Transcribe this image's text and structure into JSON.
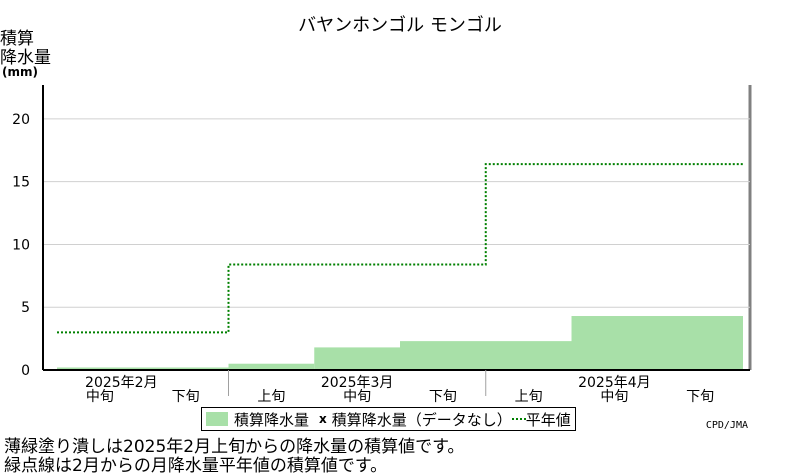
{
  "chart_data": {
    "type": "area",
    "title": "バヤンホンゴル モンゴル",
    "ylabel_lines": [
      "積算",
      "降水量"
    ],
    "yunit": "(mm)",
    "ylim": [
      0,
      22.7
    ],
    "yticks": [
      0,
      5,
      10,
      15,
      20
    ],
    "grid": true,
    "x_dekads": [
      {
        "label": "中旬",
        "month": ""
      },
      {
        "label": "下旬",
        "month": ""
      },
      {
        "label": "上旬",
        "month": ""
      },
      {
        "label": "中旬",
        "month": ""
      },
      {
        "label": "下旬",
        "month": ""
      },
      {
        "label": "上旬",
        "month": ""
      },
      {
        "label": "中旬",
        "month": ""
      },
      {
        "label": "下旬",
        "month": ""
      }
    ],
    "month_labels": [
      {
        "label": "2025年2月",
        "dekad_index": 0
      },
      {
        "label": "2025年3月",
        "dekad_index": 3
      },
      {
        "label": "2025年4月",
        "dekad_index": 6
      }
    ],
    "series": [
      {
        "name": "積算降水量",
        "style": "filled-step",
        "color": "#a8e0a8",
        "steps": [
          {
            "from": 0,
            "to": 2,
            "value": 0.2
          },
          {
            "from": 2,
            "to": 3,
            "value": 0.5
          },
          {
            "from": 3,
            "to": 4,
            "value": 1.8
          },
          {
            "from": 4,
            "to": 6,
            "value": 2.3
          },
          {
            "from": 6,
            "to": 8,
            "value": 4.3
          }
        ]
      },
      {
        "name": "平年値",
        "style": "dotted-step",
        "color": "#008000",
        "steps": [
          {
            "from": 0,
            "to": 2,
            "value": 3.0
          },
          {
            "from": 2,
            "to": 5,
            "value": 8.4
          },
          {
            "from": 5,
            "to": 8,
            "value": 16.4
          }
        ]
      }
    ],
    "legend": {
      "position": "bottom-center",
      "items": [
        "積算降水量",
        "積算降水量（データなし）",
        "平年値"
      ],
      "no_data_mark": "x"
    }
  },
  "credit": "CPD/JMA",
  "notes": [
    "薄緑塗り潰しは2025年2月上旬からの降水量の積算値です。",
    "緑点線は2月からの月降水量平年値の積算値です。"
  ],
  "colors": {
    "axis": "#000000",
    "grid": "#d0d0d0",
    "border": "#808080"
  }
}
